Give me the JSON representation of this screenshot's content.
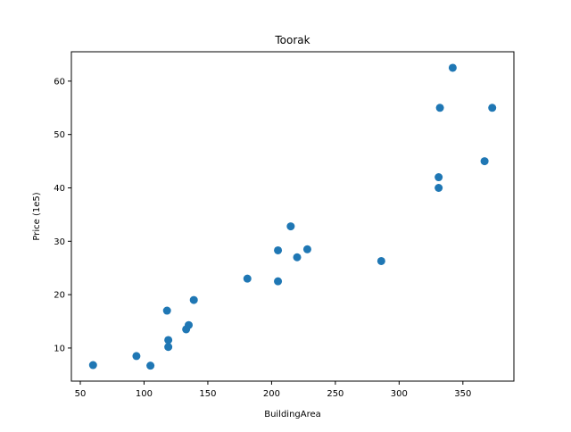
{
  "chart_data": {
    "type": "scatter",
    "title": "Toorak",
    "xlabel": "BuildingArea",
    "ylabel": "Price (1e5)",
    "xlim": [
      43,
      390
    ],
    "ylim": [
      3.8,
      65.5
    ],
    "xticks": [
      50,
      100,
      150,
      200,
      250,
      300,
      350
    ],
    "yticks": [
      10,
      20,
      30,
      40,
      50,
      60
    ],
    "grid": false,
    "legend": "none",
    "marker_color": "#1f77b4",
    "points": [
      {
        "x": 60,
        "y": 6.8
      },
      {
        "x": 94,
        "y": 8.5
      },
      {
        "x": 105,
        "y": 6.7
      },
      {
        "x": 118,
        "y": 17.0
      },
      {
        "x": 119,
        "y": 11.5
      },
      {
        "x": 119,
        "y": 10.2
      },
      {
        "x": 133,
        "y": 13.5
      },
      {
        "x": 135,
        "y": 14.3
      },
      {
        "x": 139,
        "y": 19.0
      },
      {
        "x": 181,
        "y": 23.0
      },
      {
        "x": 205,
        "y": 28.3
      },
      {
        "x": 205,
        "y": 22.5
      },
      {
        "x": 215,
        "y": 32.8
      },
      {
        "x": 220,
        "y": 27.0
      },
      {
        "x": 228,
        "y": 28.5
      },
      {
        "x": 286,
        "y": 26.3
      },
      {
        "x": 331,
        "y": 42.0
      },
      {
        "x": 331,
        "y": 40.0
      },
      {
        "x": 332,
        "y": 55.0
      },
      {
        "x": 342,
        "y": 62.5
      },
      {
        "x": 367,
        "y": 45.0
      },
      {
        "x": 373,
        "y": 55.0
      }
    ]
  }
}
